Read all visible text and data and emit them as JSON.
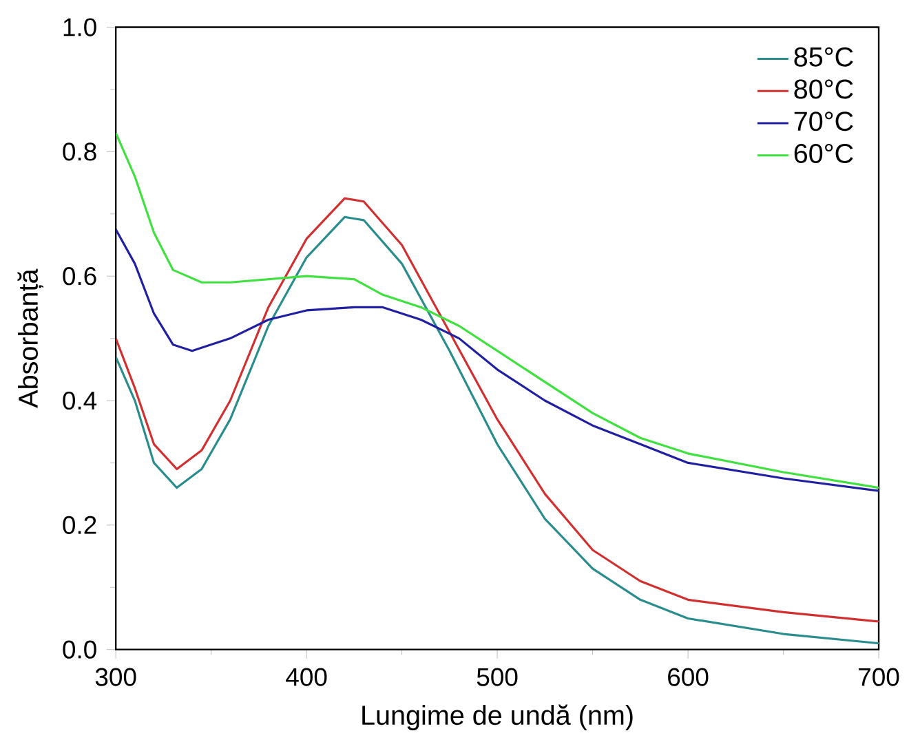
{
  "chart_data": {
    "type": "line",
    "xlabel": "Lungime de undă (nm)",
    "ylabel": "Absorbanță",
    "x": [
      300,
      310,
      320,
      332,
      345,
      360,
      380,
      400,
      420,
      430,
      450,
      475,
      500,
      525,
      550,
      575,
      600,
      650,
      700
    ],
    "series": [
      {
        "name": "85°C",
        "color": "#2a8c8c",
        "values": [
          0.47,
          0.4,
          0.3,
          0.26,
          0.29,
          0.37,
          0.52,
          0.63,
          0.695,
          0.69,
          0.62,
          0.48,
          0.33,
          0.21,
          0.13,
          0.08,
          0.05,
          0.025,
          0.01
        ]
      },
      {
        "name": "80°C",
        "color": "#d03030",
        "values": [
          0.5,
          0.42,
          0.33,
          0.29,
          0.32,
          0.4,
          0.55,
          0.66,
          0.725,
          0.72,
          0.65,
          0.51,
          0.37,
          0.25,
          0.16,
          0.11,
          0.08,
          0.06,
          0.045
        ]
      },
      {
        "name": "70°C",
        "color": "#2020a0",
        "x": [
          300,
          310,
          320,
          330,
          340,
          360,
          380,
          400,
          425,
          440,
          460,
          480,
          500,
          525,
          550,
          575,
          600,
          650,
          700
        ],
        "values": [
          0.675,
          0.62,
          0.54,
          0.49,
          0.48,
          0.5,
          0.53,
          0.545,
          0.55,
          0.55,
          0.53,
          0.5,
          0.45,
          0.4,
          0.36,
          0.33,
          0.3,
          0.275,
          0.255
        ]
      },
      {
        "name": "60°C",
        "color": "#40e040",
        "x": [
          300,
          310,
          320,
          330,
          345,
          360,
          380,
          400,
          425,
          440,
          460,
          480,
          500,
          525,
          550,
          575,
          600,
          650,
          700
        ],
        "values": [
          0.83,
          0.76,
          0.67,
          0.61,
          0.59,
          0.59,
          0.595,
          0.6,
          0.595,
          0.57,
          0.55,
          0.52,
          0.48,
          0.43,
          0.38,
          0.34,
          0.315,
          0.285,
          0.26
        ]
      }
    ],
    "xlim": [
      300,
      700
    ],
    "xticks": [
      300,
      400,
      500,
      600,
      700
    ],
    "ylim": [
      0,
      1.0
    ],
    "yticks": [
      {
        "value": 0,
        "label": "0.0"
      },
      {
        "value": 0.2,
        "label": "0.2"
      },
      {
        "value": 0.4,
        "label": "0.4"
      },
      {
        "value": 0.6,
        "label": "0.6"
      },
      {
        "value": 0.8,
        "label": "0.8"
      },
      {
        "value": 1.0,
        "label": "1.0"
      }
    ],
    "grid": false,
    "legend": "top right",
    "marker": "none",
    "line_style": "solid"
  }
}
